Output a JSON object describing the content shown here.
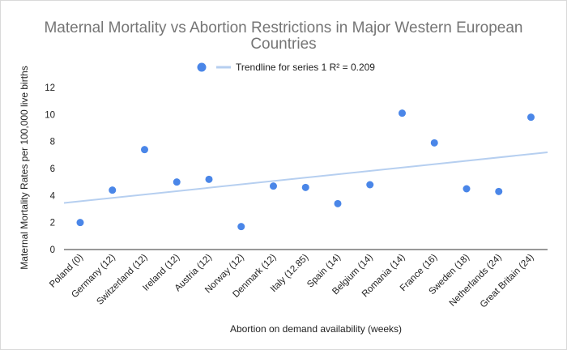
{
  "chart_data": {
    "type": "scatter",
    "title_lines": [
      "Maternal Mortality vs Abortion Restrictions in Major Western European",
      "Countries"
    ],
    "xlabel": "Abortion on demand availability (weeks)",
    "ylabel": "Maternal Mortality Rates per 100,000 live births",
    "ylim": [
      0,
      12
    ],
    "yticks": [
      0,
      2,
      4,
      6,
      8,
      10,
      12
    ],
    "categories": [
      "Poland (0)",
      "Germany (12)",
      "Switzerland (12)",
      "Ireland (12)",
      "Austria (12)",
      "Norway (12)",
      "Denmark (12)",
      "Italy (12.85)",
      "Spain (14)",
      "Belgium (14)",
      "Romania (14)",
      "France (16)",
      "Sweden (18)",
      "Netherlands (24)",
      "Great Britain (24)"
    ],
    "values": [
      2.0,
      4.4,
      7.4,
      5.0,
      5.2,
      1.7,
      4.7,
      4.6,
      3.4,
      4.8,
      10.1,
      7.9,
      4.5,
      4.3,
      9.8
    ],
    "trendline": {
      "label": "Trendline for series 1 R² = 0.209",
      "start_y": 3.45,
      "end_y": 7.2
    },
    "grid": false,
    "legend_position": "top",
    "colors": {
      "point": "#4a86e8",
      "trendline": "#b6cff0",
      "title": "#757575",
      "axis": "#333333"
    }
  }
}
